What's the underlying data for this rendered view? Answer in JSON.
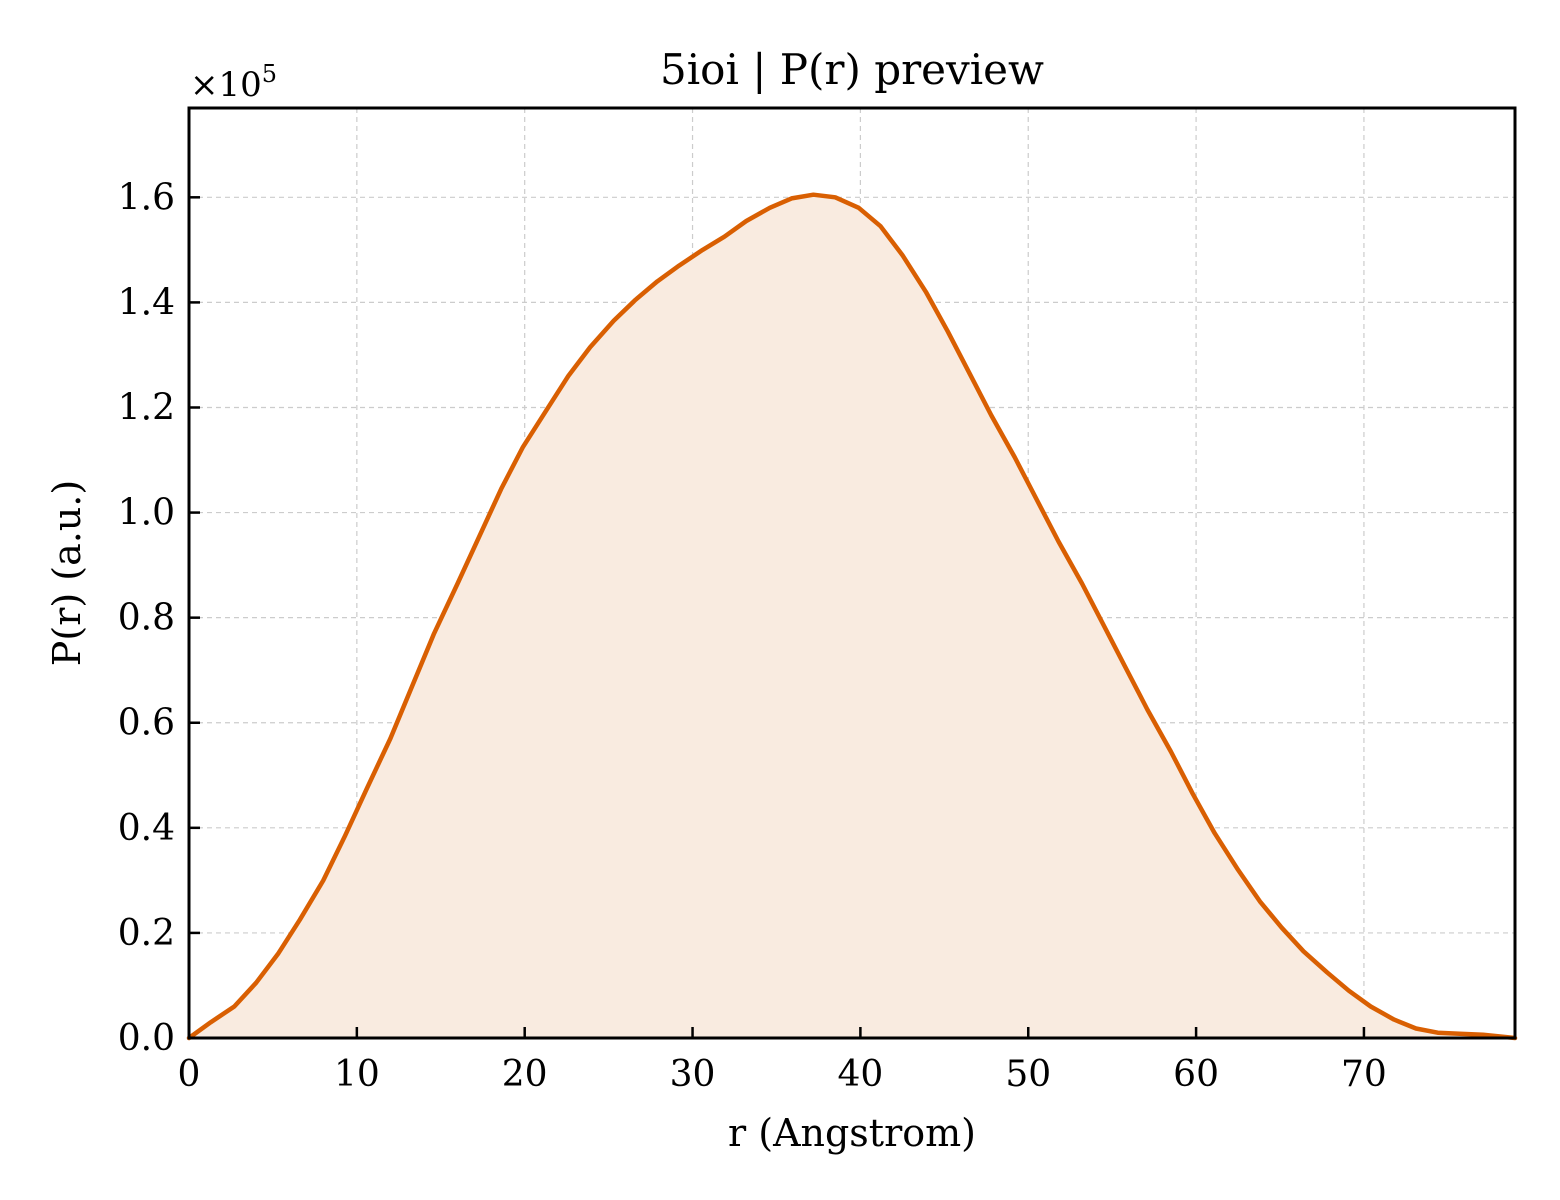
{
  "chart_data": {
    "type": "area",
    "title": "5ioi | P(r) preview",
    "xlabel": "r (Angstrom)",
    "ylabel": "P(r) (a.u.)",
    "y_offset_label": "×10",
    "y_offset_exponent": "5",
    "y_scale": 100000,
    "xlim": [
      0,
      79
    ],
    "ylim": [
      0,
      1.77
    ],
    "x_ticks": [
      0,
      10,
      20,
      30,
      40,
      50,
      60,
      70
    ],
    "x_tick_labels": [
      "0",
      "10",
      "20",
      "30",
      "40",
      "50",
      "60",
      "70"
    ],
    "y_ticks": [
      0,
      0.2,
      0.4,
      0.6,
      0.8,
      1.0,
      1.2,
      1.4,
      1.6
    ],
    "y_tick_labels": [
      "0.0",
      "0.2",
      "0.4",
      "0.6",
      "0.8",
      "1.0",
      "1.2",
      "1.4",
      "1.6"
    ],
    "grid": true,
    "colors": {
      "line": "#d95f02",
      "fill": "#f9ebe0"
    },
    "series": [
      {
        "x": [
          0,
          1.3,
          2.7,
          4.0,
          5.3,
          6.6,
          8.0,
          9.3,
          10.6,
          12.0,
          13.3,
          14.6,
          16.0,
          17.3,
          18.6,
          19.9,
          21.3,
          22.6,
          23.9,
          25.3,
          26.6,
          27.9,
          29.2,
          30.6,
          31.9,
          33.2,
          34.6,
          35.9,
          37.2,
          38.5,
          39.9,
          41.2,
          42.5,
          43.9,
          45.2,
          46.5,
          47.8,
          49.2,
          50.5,
          51.8,
          53.2,
          54.5,
          55.8,
          57.1,
          58.5,
          59.8,
          61.1,
          62.5,
          63.8,
          65.1,
          66.4,
          67.8,
          69.1,
          70.4,
          71.8,
          73.1,
          74.4,
          75.7,
          77.1,
          79.0
        ],
        "values": [
          0.0,
          0.03,
          0.06,
          0.105,
          0.16,
          0.225,
          0.3,
          0.385,
          0.475,
          0.57,
          0.67,
          0.77,
          0.865,
          0.955,
          1.045,
          1.125,
          1.195,
          1.26,
          1.315,
          1.365,
          1.405,
          1.44,
          1.47,
          1.5,
          1.525,
          1.555,
          1.58,
          1.598,
          1.605,
          1.6,
          1.58,
          1.545,
          1.49,
          1.42,
          1.345,
          1.265,
          1.185,
          1.105,
          1.025,
          0.945,
          0.865,
          0.785,
          0.705,
          0.625,
          0.545,
          0.465,
          0.39,
          0.32,
          0.26,
          0.21,
          0.165,
          0.125,
          0.09,
          0.06,
          0.035,
          0.018,
          0.01,
          0.008,
          0.006,
          0.0
        ]
      }
    ]
  }
}
